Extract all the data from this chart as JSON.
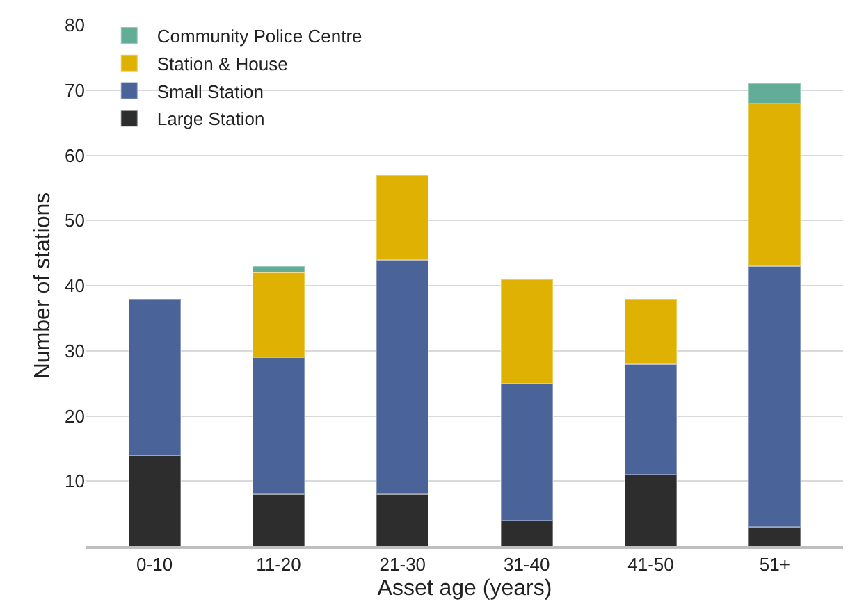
{
  "chart_data": {
    "type": "bar",
    "stacked": true,
    "xlabel": "Asset age (years)",
    "ylabel": "Number of stations",
    "categories": [
      "0-10",
      "11-20",
      "21-30",
      "31-40",
      "41-50",
      "51+"
    ],
    "series": [
      {
        "name": "Large Station",
        "color": "#2d2d2d",
        "values": [
          14,
          8,
          8,
          4,
          11,
          3
        ]
      },
      {
        "name": "Small Station",
        "color": "#4a6399",
        "values": [
          24,
          21,
          36,
          21,
          17,
          40
        ]
      },
      {
        "name": "Station & House",
        "color": "#dfb103",
        "values": [
          null,
          13,
          13,
          16,
          10,
          25
        ]
      },
      {
        "name": "Community Police Centre",
        "color": "#62ad97",
        "values": [
          null,
          1,
          null,
          null,
          null,
          3
        ]
      }
    ],
    "ylim": [
      0,
      80
    ],
    "yticks": [
      10,
      20,
      30,
      40,
      50,
      60,
      70,
      80
    ],
    "grid": "y",
    "legend": "top left"
  }
}
